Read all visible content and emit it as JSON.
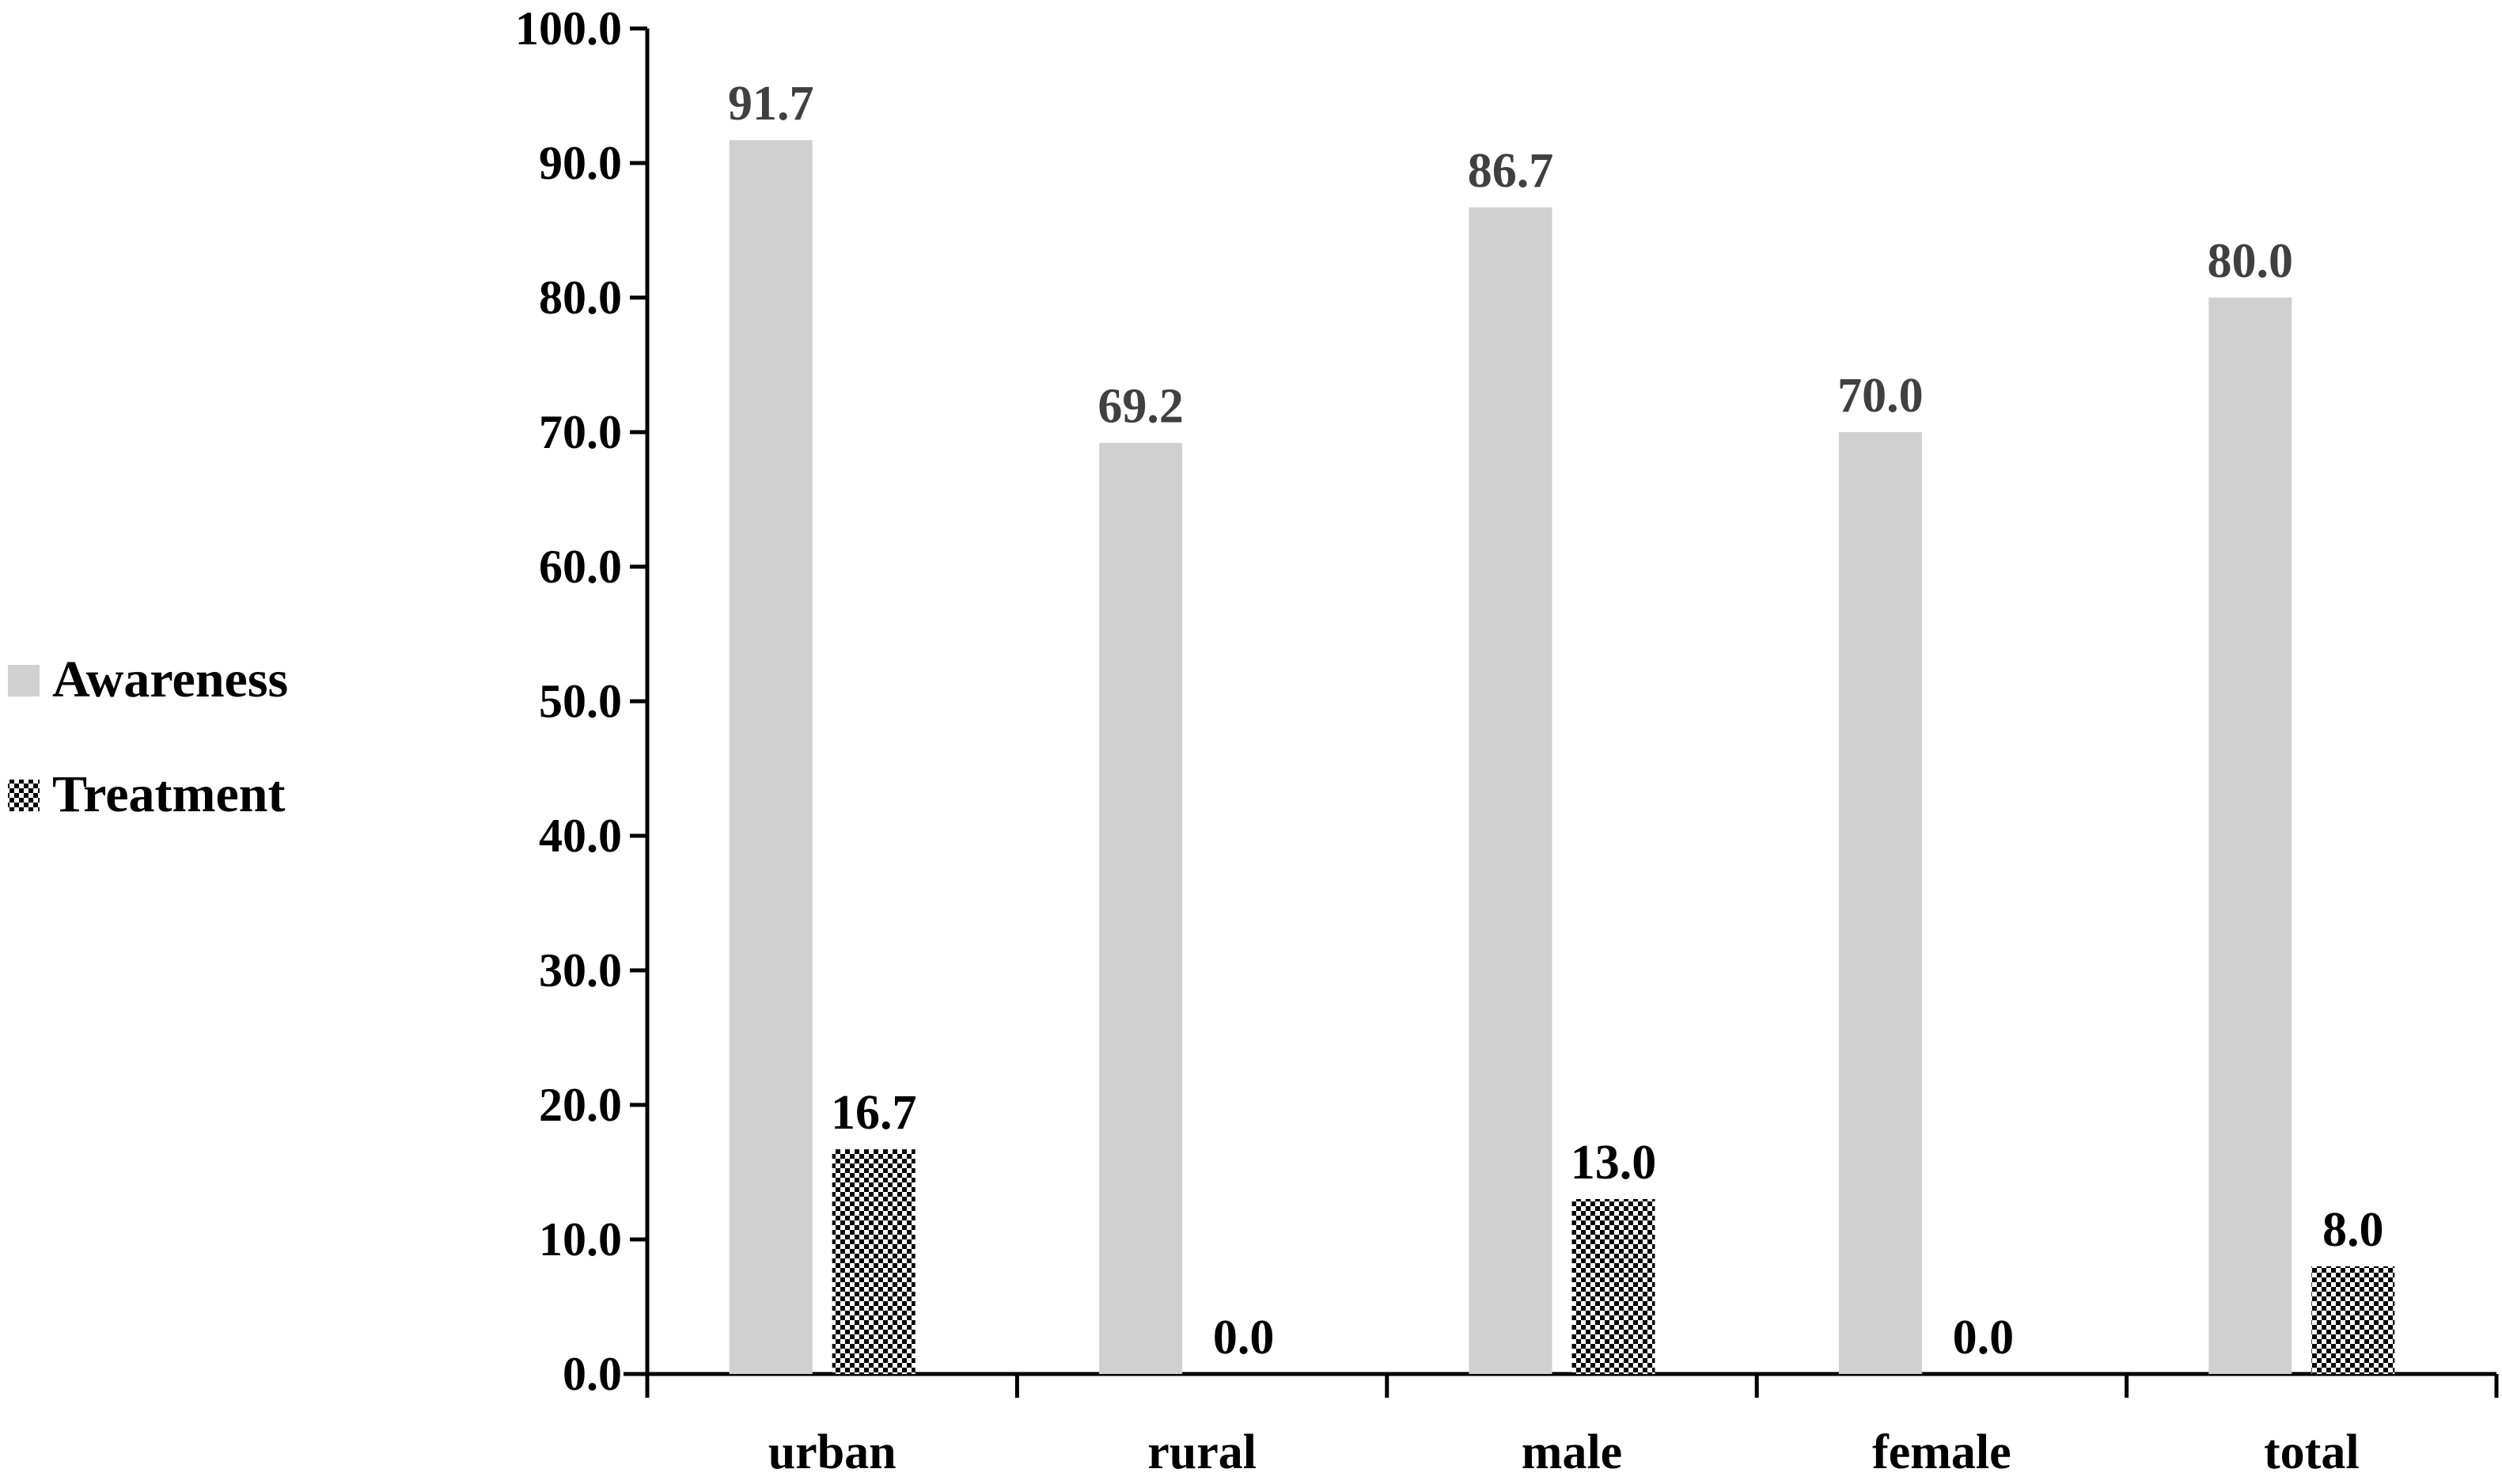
{
  "chart_data": {
    "type": "bar",
    "title": "",
    "xlabel": "",
    "ylabel": "",
    "ylim": [
      0,
      100
    ],
    "ytick_step": 10,
    "categories": [
      "urban",
      "rural",
      "male",
      "female",
      "total"
    ],
    "series": [
      {
        "name": "Awareness",
        "values": [
          91.7,
          69.2,
          86.7,
          70.0,
          80.0
        ],
        "labels": [
          "91.7",
          "69.2",
          "86.7",
          "70.0",
          "80.0"
        ],
        "fill": "solid",
        "color": "#d0d0d0",
        "label_color": "#404040"
      },
      {
        "name": "Treatment",
        "values": [
          16.7,
          0.0,
          13.0,
          0.0,
          8.0
        ],
        "labels": [
          "16.7",
          "0.0",
          "13.0",
          "0.0",
          "8.0"
        ],
        "fill": "checkerboard",
        "color": "#000000",
        "label_color": "#000000"
      }
    ],
    "yticks": [
      "0.0",
      "10.0",
      "20.0",
      "30.0",
      "40.0",
      "50.0",
      "60.0",
      "70.0",
      "80.0",
      "90.0",
      "100.0"
    ],
    "legend": {
      "placement": "left-middle"
    },
    "grid": false
  }
}
